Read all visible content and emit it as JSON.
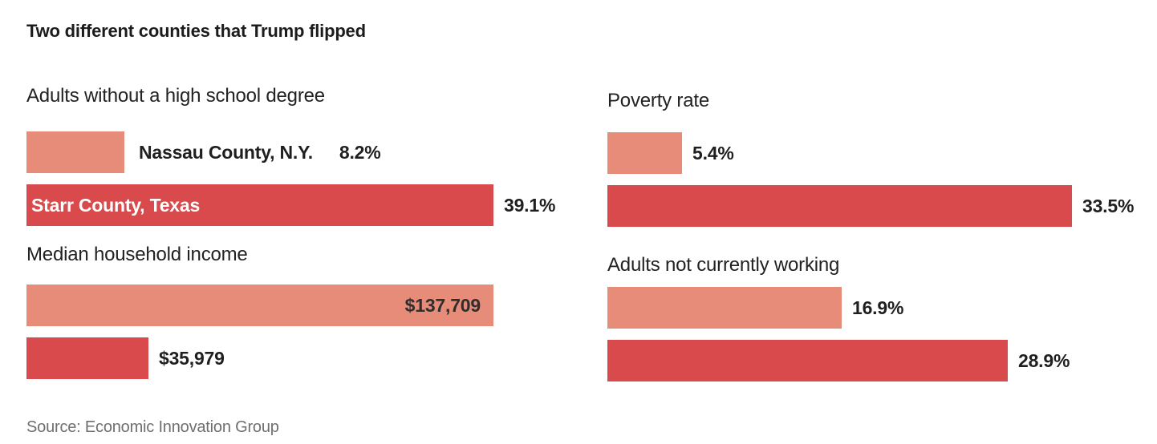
{
  "page": {
    "title": "Two different counties that Trump flipped",
    "source": "Source: Economic Innovation Group"
  },
  "chart_data": {
    "type": "bar",
    "title": "Two different counties that Trump flipped",
    "source": "Source: Economic Innovation Group",
    "orientation": "horizontal",
    "grid": false,
    "axes_shown": false,
    "legend_position": "labels-in-first-panel-bars",
    "series_names": [
      "Nassau County, N.Y.",
      "Starr County, Texas"
    ],
    "colors": {
      "nassau_bar": "#E68C78",
      "starr_bar": "#D84A4B",
      "text_dark": "#1F1F1F",
      "inside_bar_white_text": "#FFFFFF",
      "source_gray": "#6F6F6F"
    },
    "sections": [
      {
        "column": "left",
        "label": "Adults without a high school degree",
        "unit": "percent",
        "scale_max": 39.1,
        "rows": [
          {
            "county": "Nassau County, N.Y.",
            "value": 8.2,
            "display": "8.2%",
            "series": "light",
            "county_label": "outside",
            "value_label": "outside"
          },
          {
            "county": "Starr County, Texas",
            "value": 39.1,
            "display": "39.1%",
            "series": "dark",
            "county_label": "inside-bar-white",
            "value_label": "outside"
          }
        ]
      },
      {
        "column": "right",
        "label": "Poverty rate",
        "unit": "percent",
        "scale_max": 33.5,
        "rows": [
          {
            "county": "Nassau County, N.Y.",
            "value": 5.4,
            "display": "5.4%",
            "series": "light",
            "value_label": "outside"
          },
          {
            "county": "Starr County, Texas",
            "value": 33.5,
            "display": "33.5%",
            "series": "dark",
            "value_label": "outside"
          }
        ]
      },
      {
        "column": "left",
        "label": "Median household income",
        "unit": "dollars",
        "scale_max": 137709,
        "rows": [
          {
            "county": "Nassau County, N.Y.",
            "value": 137709,
            "display": "$137,709",
            "series": "light",
            "value_label": "inside-bar-right"
          },
          {
            "county": "Starr County, Texas",
            "value": 35979,
            "display": "$35,979",
            "series": "dark",
            "value_label": "outside"
          }
        ]
      },
      {
        "column": "right",
        "label": "Adults not currently working",
        "unit": "percent",
        "scale_max": 33.5,
        "rows": [
          {
            "county": "Nassau County, N.Y.",
            "value": 16.9,
            "display": "16.9%",
            "series": "light",
            "value_label": "outside"
          },
          {
            "county": "Starr County, Texas",
            "value": 28.9,
            "display": "28.9%",
            "series": "dark",
            "value_label": "outside"
          }
        ]
      }
    ]
  }
}
